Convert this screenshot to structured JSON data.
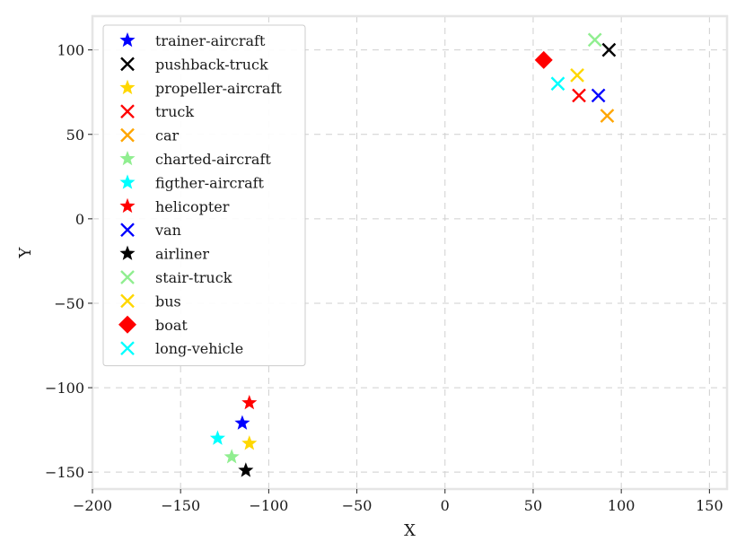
{
  "chart_data": {
    "type": "scatter",
    "title": "",
    "xlabel": "X",
    "ylabel": "Y",
    "xlim": [
      -200,
      160
    ],
    "ylim": [
      -160,
      120
    ],
    "xticks": [
      -200,
      -150,
      -100,
      -50,
      0,
      50,
      100,
      150
    ],
    "yticks": [
      -150,
      -100,
      -50,
      0,
      50,
      100
    ],
    "grid": true,
    "legend_position": "top-left",
    "series": [
      {
        "name": "trainer-aircraft",
        "marker": "star",
        "color": "#0000ff",
        "points": [
          [
            -115,
            -121
          ]
        ]
      },
      {
        "name": "pushback-truck",
        "marker": "x",
        "color": "#000000",
        "points": [
          [
            93,
            100
          ]
        ]
      },
      {
        "name": "propeller-aircraft",
        "marker": "star",
        "color": "#ffd700",
        "points": [
          [
            -111,
            -133
          ]
        ]
      },
      {
        "name": "truck",
        "marker": "x",
        "color": "#ff0000",
        "points": [
          [
            76,
            73
          ]
        ]
      },
      {
        "name": "car",
        "marker": "x",
        "color": "#ffa500",
        "points": [
          [
            92,
            61
          ]
        ]
      },
      {
        "name": "charted-aircraft",
        "marker": "star",
        "color": "#90ee90",
        "points": [
          [
            -121,
            -141
          ]
        ]
      },
      {
        "name": "figther-aircraft",
        "marker": "star",
        "color": "#00ffff",
        "points": [
          [
            -129,
            -130
          ]
        ]
      },
      {
        "name": "helicopter",
        "marker": "star",
        "color": "#ff0000",
        "points": [
          [
            -111,
            -109
          ]
        ]
      },
      {
        "name": "van",
        "marker": "x",
        "color": "#0000ff",
        "points": [
          [
            87,
            73
          ]
        ]
      },
      {
        "name": "airliner",
        "marker": "star",
        "color": "#000000",
        "points": [
          [
            -113,
            -149
          ]
        ]
      },
      {
        "name": "stair-truck",
        "marker": "x",
        "color": "#90ee90",
        "points": [
          [
            85,
            106
          ]
        ]
      },
      {
        "name": "bus",
        "marker": "x",
        "color": "#ffd700",
        "points": [
          [
            75,
            85
          ]
        ]
      },
      {
        "name": "boat",
        "marker": "diamond",
        "color": "#ff0000",
        "points": [
          [
            56,
            94
          ]
        ]
      },
      {
        "name": "long-vehicle",
        "marker": "x",
        "color": "#00ffff",
        "points": [
          [
            64,
            80
          ]
        ]
      }
    ]
  }
}
